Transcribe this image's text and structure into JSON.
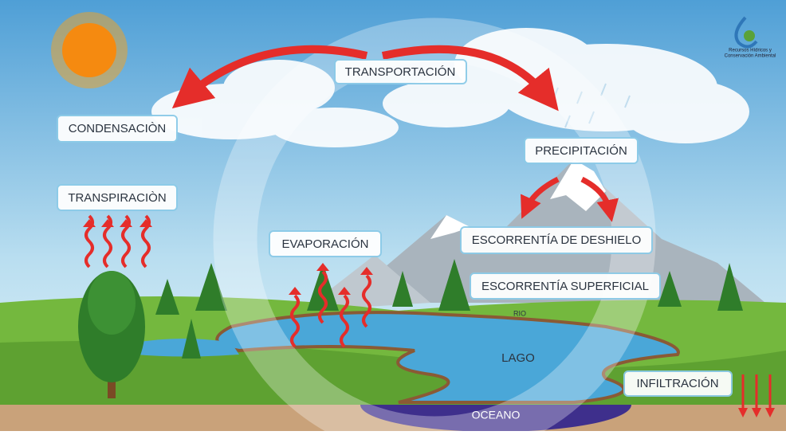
{
  "logo": {
    "lines": [
      "Recursos Hídricos y",
      "Conservación Ambiental"
    ]
  },
  "labels": {
    "transport": "TRANSPORTACIÓN",
    "condensation": "CONDENSACIÒN",
    "transpiration": "TRANSPIRACIÒN",
    "evaporation": "EVAPORACIÓN",
    "precipitation": "PRECIPITACIÓN",
    "snowmelt": "ESCORRENTÍA DE DESHIELO",
    "surface": "ESCORRENTÍA SUPERFICIAL",
    "river": "RIO",
    "lake": "LAGO",
    "infiltration": "INFILTRACIÓN",
    "ocean": "OCEANO"
  }
}
